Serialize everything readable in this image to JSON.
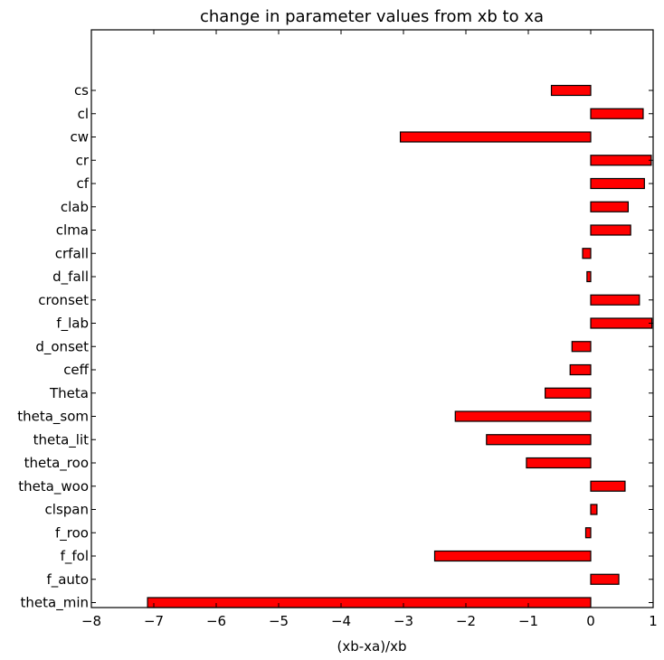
{
  "chart_data": {
    "type": "bar",
    "orientation": "horizontal",
    "title": "change in parameter values from xb to xa",
    "xlabel": "(xb-xa)/xb",
    "ylabel": "",
    "xlim": [
      -8,
      1
    ],
    "xticks": [
      "−8",
      "−7",
      "−6",
      "−5",
      "−4",
      "−3",
      "−2",
      "−1",
      "0",
      "1"
    ],
    "grid": false,
    "legend": "none",
    "bar_color": "#ff0000",
    "edge_color": "#000000",
    "categories": [
      "theta_min",
      "f_auto",
      "f_fol",
      "f_roo",
      "clspan",
      "theta_woo",
      "theta_roo",
      "theta_lit",
      "theta_som",
      "Theta",
      "ceff",
      "d_onset",
      "f_lab",
      "cronset",
      "d_fall",
      "crfall",
      "clma",
      "clab",
      "cf",
      "cr",
      "cw",
      "cl",
      "cs"
    ],
    "values": [
      -7.1,
      0.45,
      -2.5,
      -0.08,
      0.1,
      0.55,
      -1.03,
      -1.67,
      -2.17,
      -0.73,
      -0.33,
      -0.3,
      0.98,
      0.78,
      -0.06,
      -0.13,
      0.64,
      0.6,
      0.86,
      0.97,
      -3.05,
      0.84,
      -0.63
    ]
  }
}
